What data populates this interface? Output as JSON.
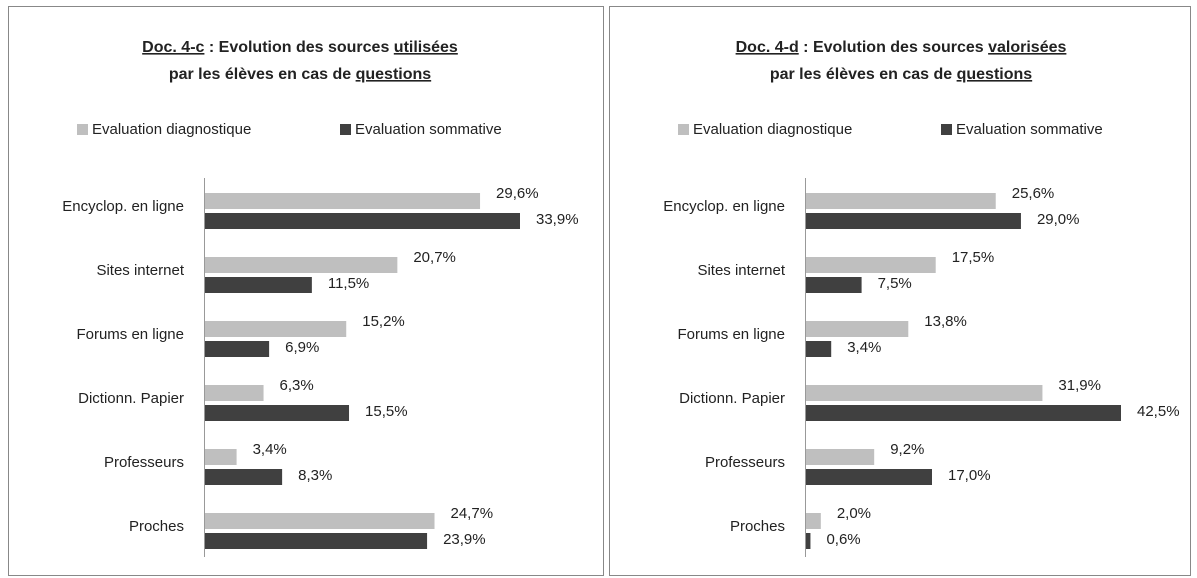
{
  "chart_data": [
    {
      "type": "bar",
      "orientation": "horizontal",
      "title": [
        [
          {
            "text": "Doc. 4-c",
            "underline": true
          },
          {
            "text": " : Evolution des sources "
          },
          {
            "text": "utilisées",
            "underline": true
          }
        ],
        [
          {
            "text": "par les élèves en cas de "
          },
          {
            "text": "questions",
            "underline": true
          }
        ]
      ],
      "categories": [
        "Encyclop. en ligne",
        "Sites internet",
        "Forums en ligne",
        "Dictionn. Papier",
        "Professeurs",
        "Proches"
      ],
      "series": [
        {
          "name": "Evaluation diagnostique",
          "color": "#bfbfbf",
          "values": [
            29.6,
            20.7,
            15.2,
            6.3,
            3.4,
            24.7
          ],
          "value_labels": [
            "29,6%",
            "20,7%",
            "15,2%",
            "6,3%",
            "3,4%",
            "24,7%"
          ]
        },
        {
          "name": "Evaluation sommative",
          "color": "#404040",
          "values": [
            33.9,
            11.5,
            6.9,
            15.5,
            8.3,
            23.9
          ],
          "value_labels": [
            "33,9%",
            "11,5%",
            "6,9%",
            "15,5%",
            "8,3%",
            "23,9%"
          ]
        }
      ]
    },
    {
      "type": "bar",
      "orientation": "horizontal",
      "title": [
        [
          {
            "text": "Doc. 4-d",
            "underline": true
          },
          {
            "text": " : Evolution des sources "
          },
          {
            "text": "valorisées",
            "underline": true
          }
        ],
        [
          {
            "text": "par les élèves en cas de "
          },
          {
            "text": "questions",
            "underline": true
          }
        ]
      ],
      "categories": [
        "Encyclop. en ligne",
        "Sites internet",
        "Forums en ligne",
        "Dictionn. Papier",
        "Professeurs",
        "Proches"
      ],
      "series": [
        {
          "name": "Evaluation diagnostique",
          "color": "#bfbfbf",
          "values": [
            25.6,
            17.5,
            13.8,
            31.9,
            9.2,
            2.0
          ],
          "value_labels": [
            "25,6%",
            "17,5%",
            "13,8%",
            "31,9%",
            "9,2%",
            "2,0%"
          ]
        },
        {
          "name": "Evaluation sommative",
          "color": "#404040",
          "values": [
            29.0,
            7.5,
            3.4,
            42.5,
            17.0,
            0.6
          ],
          "value_labels": [
            "29,0%",
            "7,5%",
            "3,4%",
            "42,5%",
            "17,0%",
            "0,6%"
          ]
        }
      ]
    }
  ]
}
